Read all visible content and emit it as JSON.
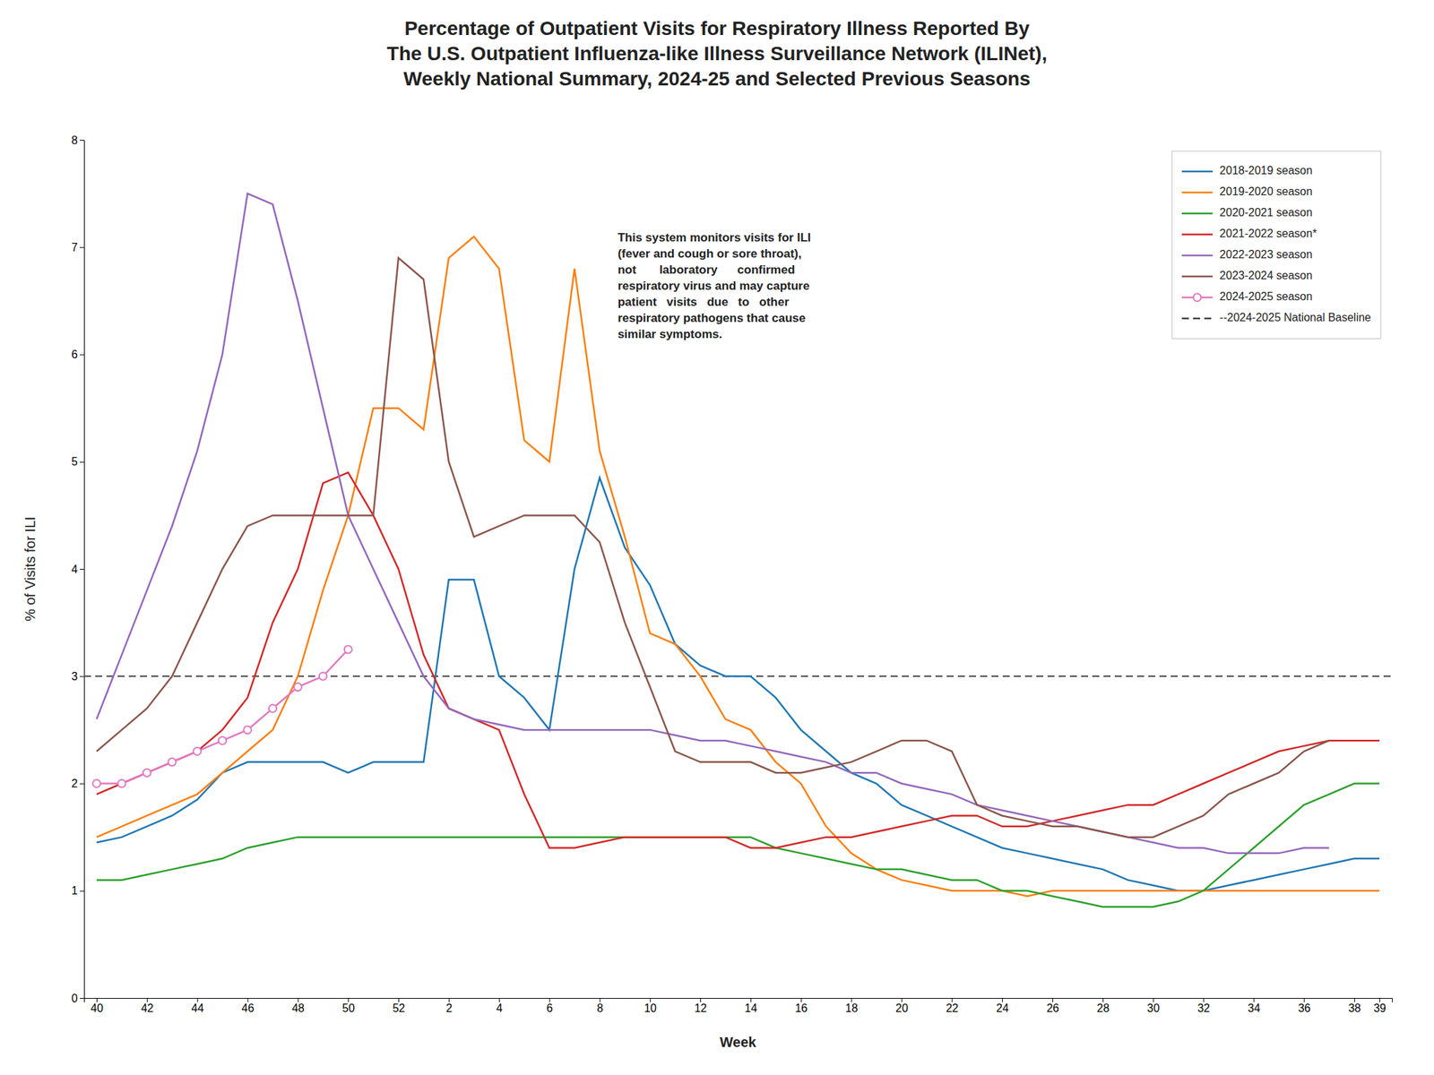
{
  "chart_data": {
    "type": "line",
    "title": "Percentage of Outpatient Visits for Respiratory Illness Reported By\nThe U.S. Outpatient Influenza-like Illness Surveillance Network (ILINet),\nWeekly National Summary, 2024-25 and Selected Previous Seasons",
    "x_label": "Week",
    "y_label": "% of Visits for ILI",
    "annotation": "This system monitors visits for ILI\n(fever and cough or sore throat),\nnot       laboratory      confirmed\nrespiratory virus and may capture\npatient   visits   due   to   other\nrespiratory pathogens that cause\nsimilar symptoms.",
    "categories": [
      "40",
      null,
      "42",
      null,
      "44",
      null,
      "46",
      null,
      "48",
      null,
      "50",
      null,
      "52",
      null,
      "2",
      null,
      "4",
      null,
      "6",
      null,
      "8",
      null,
      "10",
      null,
      "12",
      null,
      "14",
      null,
      "16",
      null,
      "18",
      null,
      "20",
      null,
      "22",
      null,
      "24",
      null,
      "26",
      null,
      "28",
      null,
      "30",
      null,
      "32",
      null,
      "34",
      null,
      "36",
      null,
      "38",
      "39"
    ],
    "ylim": [
      0,
      8
    ],
    "yticks": [
      0,
      1,
      2,
      3,
      4,
      5,
      6,
      7,
      8
    ],
    "grid": false,
    "legend": "upper right",
    "series": [
      {
        "name": "2018-2019 season",
        "type": "line",
        "values": [
          1.45,
          1.5,
          1.6,
          1.7,
          1.85,
          2.1,
          2.2,
          2.2,
          2.2,
          2.2,
          2.1,
          2.2,
          2.2,
          2.2,
          3.9,
          3.9,
          3.0,
          2.8,
          2.5,
          4.0,
          4.85,
          4.2,
          3.85,
          3.3,
          3.1,
          3.0,
          3.0,
          2.8,
          2.5,
          2.3,
          2.1,
          2.0,
          1.8,
          1.7,
          1.6,
          1.5,
          1.4,
          1.35,
          1.3,
          1.25,
          1.2,
          1.1,
          1.05,
          1.0,
          1.0,
          1.05,
          1.1,
          1.15,
          1.2,
          1.25,
          1.3,
          1.3
        ]
      },
      {
        "name": "2019-2020 season",
        "type": "line",
        "values": [
          1.5,
          1.6,
          1.7,
          1.8,
          1.9,
          2.1,
          2.3,
          2.5,
          3.0,
          3.8,
          4.5,
          5.5,
          5.5,
          5.3,
          6.9,
          7.1,
          6.8,
          5.2,
          5.0,
          6.8,
          5.1,
          4.3,
          3.4,
          3.3,
          3.0,
          2.6,
          2.5,
          2.2,
          2.0,
          1.6,
          1.35,
          1.2,
          1.1,
          1.05,
          1.0,
          1.0,
          1.0,
          0.95,
          1.0,
          1.0,
          1.0,
          1.0,
          1.0,
          1.0,
          1.0,
          1.0,
          1.0,
          1.0,
          1.0,
          1.0,
          1.0,
          1.0
        ]
      },
      {
        "name": "2020-2021 season",
        "type": "line",
        "values": [
          1.1,
          1.1,
          1.15,
          1.2,
          1.25,
          1.3,
          1.4,
          1.45,
          1.5,
          1.5,
          1.5,
          1.5,
          1.5,
          1.5,
          1.5,
          1.5,
          1.5,
          1.5,
          1.5,
          1.5,
          1.5,
          1.5,
          1.5,
          1.5,
          1.5,
          1.5,
          1.5,
          1.4,
          1.35,
          1.3,
          1.25,
          1.2,
          1.2,
          1.15,
          1.1,
          1.1,
          1.0,
          1.0,
          0.95,
          0.9,
          0.85,
          0.85,
          0.85,
          0.9,
          1.0,
          1.2,
          1.4,
          1.6,
          1.8,
          1.9,
          2.0,
          2.0
        ]
      },
      {
        "name": "2021-2022 season*",
        "type": "line",
        "values": [
          1.9,
          2.0,
          2.1,
          2.2,
          2.3,
          2.5,
          2.8,
          3.5,
          4.0,
          4.8,
          4.9,
          4.5,
          4.0,
          3.2,
          2.7,
          2.6,
          2.5,
          1.9,
          1.4,
          1.4,
          1.45,
          1.5,
          1.5,
          1.5,
          1.5,
          1.5,
          1.4,
          1.4,
          1.45,
          1.5,
          1.5,
          1.55,
          1.6,
          1.65,
          1.7,
          1.7,
          1.6,
          1.6,
          1.65,
          1.7,
          1.75,
          1.8,
          1.8,
          1.9,
          2.0,
          2.1,
          2.2,
          2.3,
          2.35,
          2.4,
          2.4,
          2.4
        ]
      },
      {
        "name": "2022-2023 season",
        "type": "line",
        "values": [
          2.6,
          3.2,
          3.8,
          4.4,
          5.1,
          6.0,
          7.5,
          7.4,
          6.5,
          5.5,
          4.5,
          4.0,
          3.5,
          3.0,
          2.7,
          2.6,
          2.55,
          2.5,
          2.5,
          2.5,
          2.5,
          2.5,
          2.5,
          2.45,
          2.4,
          2.4,
          2.35,
          2.3,
          2.25,
          2.2,
          2.1,
          2.1,
          2.0,
          1.95,
          1.9,
          1.8,
          1.75,
          1.7,
          1.65,
          1.6,
          1.55,
          1.5,
          1.45,
          1.4,
          1.4,
          1.35,
          1.35,
          1.35,
          1.4,
          1.4,
          null,
          null
        ]
      },
      {
        "name": "2023-2024 season",
        "type": "line",
        "values": [
          2.3,
          2.5,
          2.7,
          3.0,
          3.5,
          4.0,
          4.4,
          4.5,
          4.5,
          4.5,
          4.5,
          4.5,
          6.9,
          6.7,
          5.0,
          4.3,
          4.4,
          4.5,
          4.5,
          4.5,
          4.25,
          3.5,
          2.9,
          2.3,
          2.2,
          2.2,
          2.2,
          2.1,
          2.1,
          2.15,
          2.2,
          2.3,
          2.4,
          2.4,
          2.3,
          1.8,
          1.7,
          1.65,
          1.6,
          1.6,
          1.55,
          1.5,
          1.5,
          1.6,
          1.7,
          1.9,
          2.0,
          2.1,
          2.3,
          2.4,
          null,
          null
        ]
      },
      {
        "name": "2024-2025 season",
        "type": "line",
        "marker": "circle",
        "values": [
          2.0,
          2.0,
          2.1,
          2.2,
          2.3,
          2.4,
          2.5,
          2.7,
          2.9,
          3.0,
          3.25,
          null,
          null,
          null,
          null,
          null,
          null,
          null,
          null,
          null,
          null,
          null,
          null,
          null,
          null,
          null,
          null,
          null,
          null,
          null,
          null,
          null,
          null,
          null,
          null,
          null,
          null,
          null,
          null,
          null,
          null,
          null,
          null,
          null,
          null,
          null,
          null,
          null,
          null,
          null,
          null,
          null
        ]
      }
    ],
    "baseline": {
      "name": "--2024-2025 National Baseline",
      "value": 3.0,
      "line_style": "dashed"
    }
  }
}
